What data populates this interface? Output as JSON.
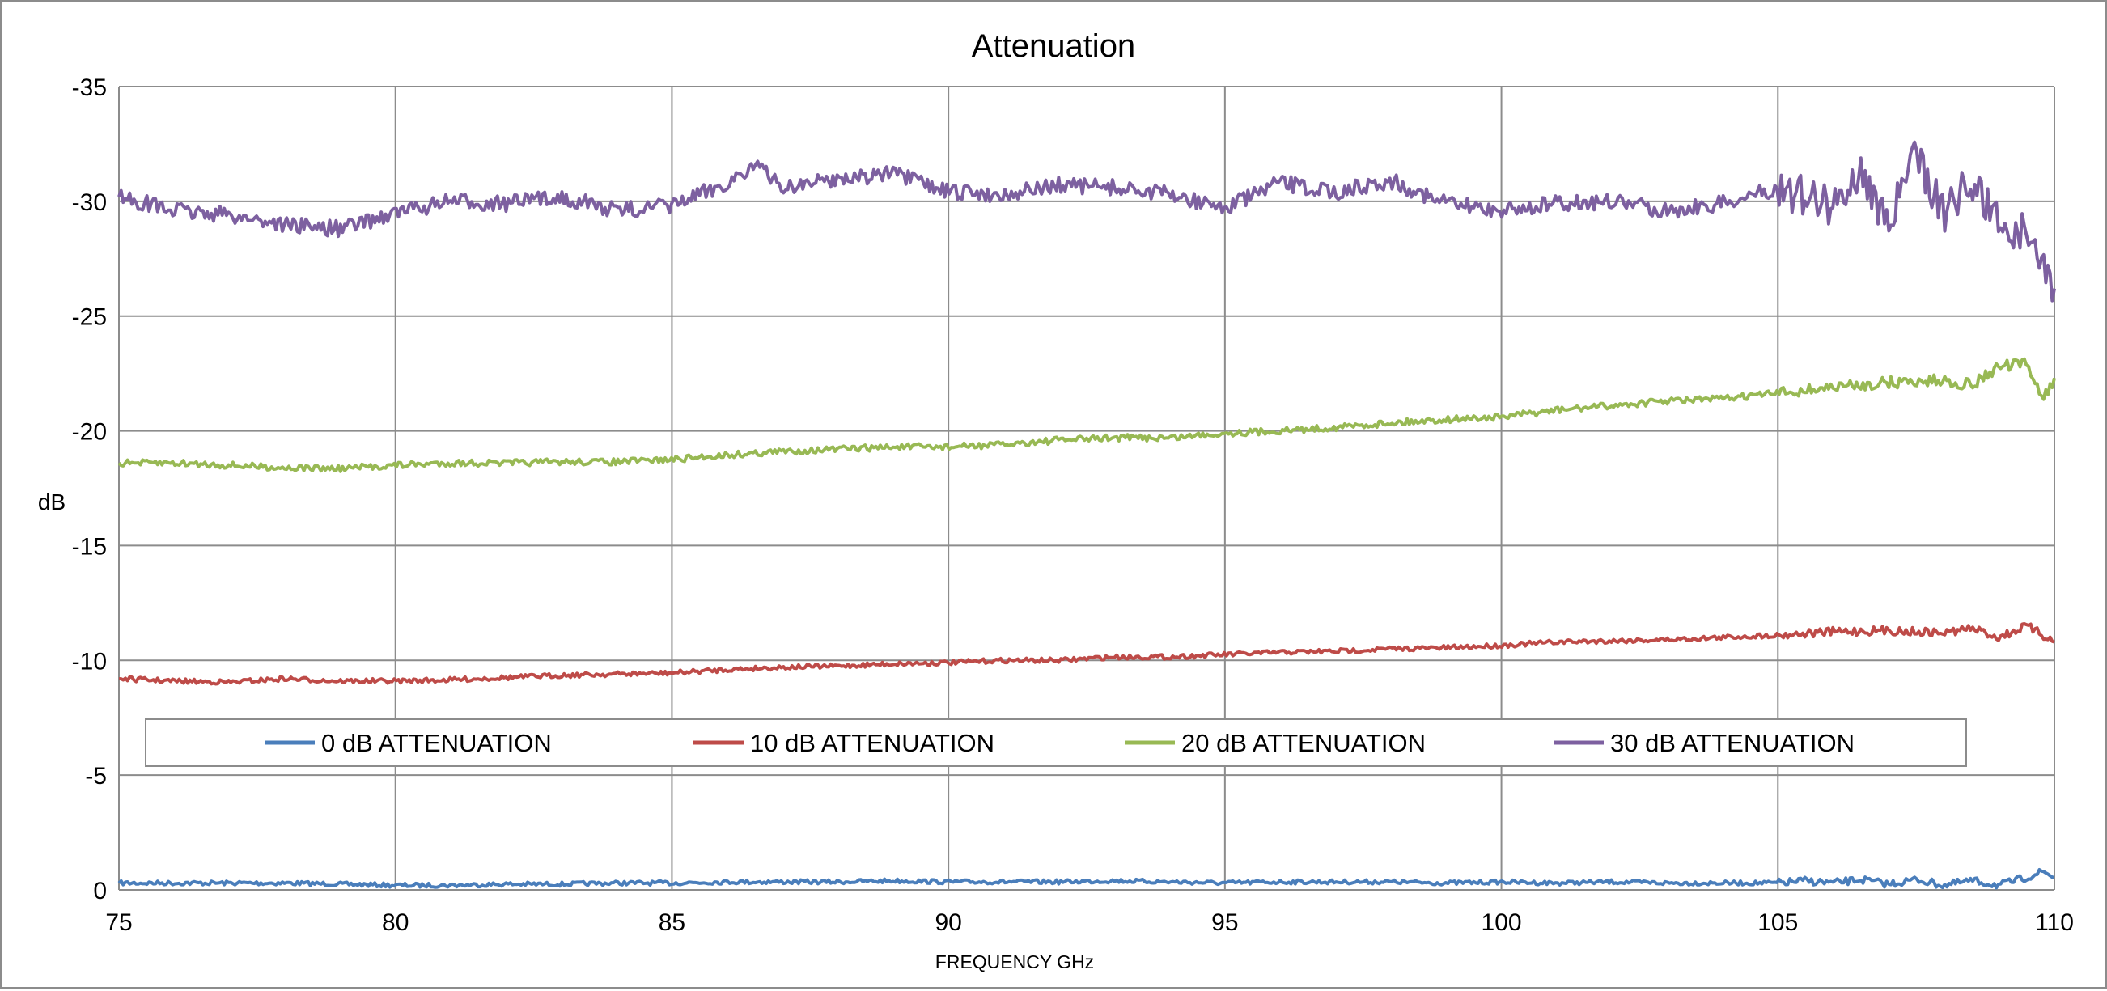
{
  "chart_data": {
    "type": "line",
    "title": "Attenuation",
    "xlabel": "FREQUENCY GHz",
    "ylabel": "dB",
    "xlim": [
      75,
      110
    ],
    "ylim": [
      0,
      -35
    ],
    "y_axis_inverted": true,
    "x_ticks": [
      75,
      80,
      85,
      90,
      95,
      100,
      105,
      110
    ],
    "y_ticks": [
      -35,
      -30,
      -25,
      -20,
      -15,
      -10,
      -5,
      0
    ],
    "grid": true,
    "legend_position": "bottom",
    "series": [
      {
        "name": "0 dB ATTENUATION",
        "color": "#4a7ebb",
        "points": [
          [
            75,
            -0.3
          ],
          [
            76,
            -0.3
          ],
          [
            77,
            -0.3
          ],
          [
            78,
            -0.3
          ],
          [
            79,
            -0.25
          ],
          [
            80,
            -0.2
          ],
          [
            81,
            -0.2
          ],
          [
            82,
            -0.25
          ],
          [
            83,
            -0.25
          ],
          [
            84,
            -0.3
          ],
          [
            85,
            -0.3
          ],
          [
            86,
            -0.35
          ],
          [
            87,
            -0.35
          ],
          [
            88,
            -0.35
          ],
          [
            89,
            -0.4
          ],
          [
            90,
            -0.35
          ],
          [
            91,
            -0.35
          ],
          [
            92,
            -0.35
          ],
          [
            93,
            -0.4
          ],
          [
            94,
            -0.35
          ],
          [
            95,
            -0.3
          ],
          [
            96,
            -0.35
          ],
          [
            97,
            -0.35
          ],
          [
            98,
            -0.35
          ],
          [
            99,
            -0.3
          ],
          [
            100,
            -0.35
          ],
          [
            101,
            -0.3
          ],
          [
            102,
            -0.35
          ],
          [
            103,
            -0.3
          ],
          [
            104,
            -0.3
          ],
          [
            105,
            -0.3
          ],
          [
            105.5,
            -0.4
          ],
          [
            106,
            -0.3
          ],
          [
            106.5,
            -0.45
          ],
          [
            107,
            -0.25
          ],
          [
            107.5,
            -0.45
          ],
          [
            108,
            -0.2
          ],
          [
            108.5,
            -0.4
          ],
          [
            109,
            -0.2
          ],
          [
            109.5,
            -0.55
          ],
          [
            109.8,
            -0.8
          ],
          [
            110,
            -0.55
          ]
        ]
      },
      {
        "name": "10 dB ATTENUATION",
        "color": "#be4b48",
        "points": [
          [
            75,
            -9.2
          ],
          [
            76,
            -9.1
          ],
          [
            77,
            -9.05
          ],
          [
            78,
            -9.2
          ],
          [
            79,
            -9.1
          ],
          [
            80,
            -9.1
          ],
          [
            81,
            -9.15
          ],
          [
            82,
            -9.25
          ],
          [
            83,
            -9.35
          ],
          [
            84,
            -9.4
          ],
          [
            85,
            -9.45
          ],
          [
            86,
            -9.6
          ],
          [
            87,
            -9.7
          ],
          [
            88,
            -9.75
          ],
          [
            89,
            -9.85
          ],
          [
            90,
            -9.9
          ],
          [
            91,
            -10.0
          ],
          [
            92,
            -10.0
          ],
          [
            93,
            -10.15
          ],
          [
            94,
            -10.15
          ],
          [
            95,
            -10.25
          ],
          [
            96,
            -10.35
          ],
          [
            97,
            -10.4
          ],
          [
            98,
            -10.5
          ],
          [
            99,
            -10.55
          ],
          [
            100,
            -10.65
          ],
          [
            101,
            -10.8
          ],
          [
            102,
            -10.85
          ],
          [
            103,
            -10.9
          ],
          [
            104,
            -11.0
          ],
          [
            105,
            -11.1
          ],
          [
            106,
            -11.25
          ],
          [
            107,
            -11.3
          ],
          [
            108,
            -11.2
          ],
          [
            108.5,
            -11.4
          ],
          [
            109,
            -11.0
          ],
          [
            109.5,
            -11.5
          ],
          [
            110,
            -10.8
          ]
        ]
      },
      {
        "name": "20 dB ATTENUATION",
        "color": "#98b954",
        "points": [
          [
            75,
            -18.6
          ],
          [
            76,
            -18.6
          ],
          [
            77,
            -18.5
          ],
          [
            78,
            -18.4
          ],
          [
            79,
            -18.35
          ],
          [
            80,
            -18.5
          ],
          [
            81,
            -18.6
          ],
          [
            82,
            -18.6
          ],
          [
            83,
            -18.65
          ],
          [
            84,
            -18.65
          ],
          [
            85,
            -18.75
          ],
          [
            86,
            -18.95
          ],
          [
            87,
            -19.1
          ],
          [
            88,
            -19.2
          ],
          [
            89,
            -19.3
          ],
          [
            90,
            -19.3
          ],
          [
            91,
            -19.4
          ],
          [
            92,
            -19.6
          ],
          [
            93,
            -19.7
          ],
          [
            94,
            -19.7
          ],
          [
            95,
            -19.9
          ],
          [
            96,
            -20.0
          ],
          [
            97,
            -20.15
          ],
          [
            98,
            -20.35
          ],
          [
            99,
            -20.5
          ],
          [
            100,
            -20.6
          ],
          [
            101,
            -20.9
          ],
          [
            102,
            -21.1
          ],
          [
            103,
            -21.3
          ],
          [
            104,
            -21.4
          ],
          [
            105,
            -21.65
          ],
          [
            106,
            -21.9
          ],
          [
            107,
            -22.1
          ],
          [
            108,
            -22.2
          ],
          [
            108.5,
            -22.0
          ],
          [
            109,
            -22.8
          ],
          [
            109.5,
            -22.9
          ],
          [
            109.8,
            -21.4
          ],
          [
            110,
            -22.3
          ]
        ]
      },
      {
        "name": "30 dB ATTENUATION",
        "color": "#7d60a0",
        "points": [
          [
            75,
            -30.2
          ],
          [
            76,
            -29.6
          ],
          [
            77,
            -29.4
          ],
          [
            78,
            -29.0
          ],
          [
            79,
            -28.8
          ],
          [
            80,
            -29.5
          ],
          [
            81,
            -30.0
          ],
          [
            82,
            -29.9
          ],
          [
            83,
            -30.2
          ],
          [
            84,
            -29.6
          ],
          [
            85,
            -29.8
          ],
          [
            86,
            -30.8
          ],
          [
            86.5,
            -31.6
          ],
          [
            87,
            -30.6
          ],
          [
            88,
            -31.0
          ],
          [
            89,
            -31.2
          ],
          [
            90,
            -30.4
          ],
          [
            91,
            -30.3
          ],
          [
            92,
            -30.7
          ],
          [
            93,
            -30.6
          ],
          [
            94,
            -30.3
          ],
          [
            95,
            -29.7
          ],
          [
            96,
            -30.8
          ],
          [
            97,
            -30.4
          ],
          [
            98,
            -30.9
          ],
          [
            99,
            -29.9
          ],
          [
            100,
            -29.6
          ],
          [
            101,
            -29.9
          ],
          [
            102,
            -30.0
          ],
          [
            103,
            -29.6
          ],
          [
            104,
            -29.9
          ],
          [
            105,
            -30.6
          ],
          [
            106,
            -29.8
          ],
          [
            106.5,
            -31.3
          ],
          [
            107,
            -29.0
          ],
          [
            107.5,
            -32.0
          ],
          [
            108,
            -29.5
          ],
          [
            108.5,
            -30.9
          ],
          [
            109,
            -29.0
          ],
          [
            109.5,
            -28.6
          ],
          [
            110,
            -26.2
          ]
        ]
      }
    ]
  }
}
